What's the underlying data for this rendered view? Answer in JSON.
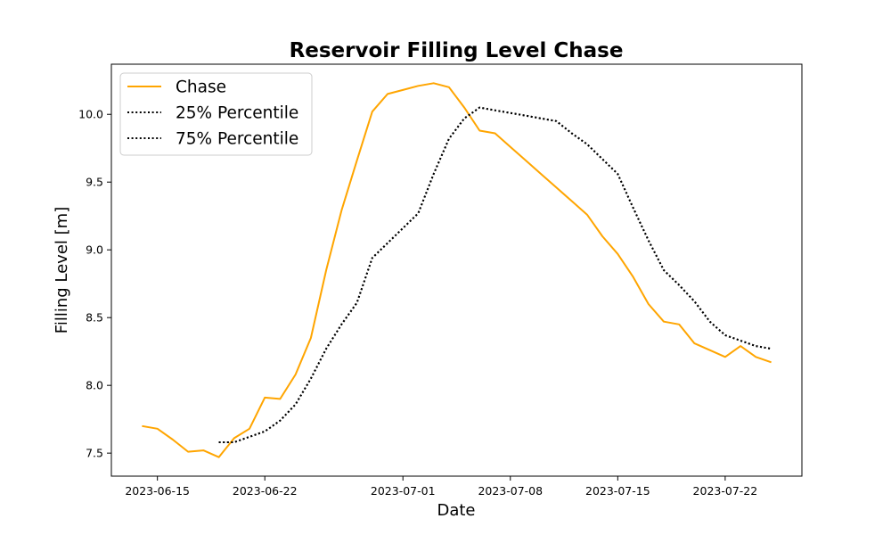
{
  "chart_data": {
    "type": "line",
    "title": "Reservoir Filling Level Chase",
    "xlabel": "Date",
    "ylabel": "Filling Level [m]",
    "x_axis_type": "date",
    "xlim": [
      "2023-06-12",
      "2023-07-27"
    ],
    "ylim": [
      7.33,
      10.37
    ],
    "x_ticks": [
      "2023-06-15",
      "2023-06-22",
      "2023-07-01",
      "2023-07-08",
      "2023-07-15",
      "2023-07-22"
    ],
    "y_ticks": [
      7.5,
      8.0,
      8.5,
      9.0,
      9.5,
      10.0
    ],
    "y_tick_labels": [
      "7.5",
      "8.0",
      "8.5",
      "9.0",
      "9.5",
      "10.0"
    ],
    "grid": false,
    "legend_position": "top-left",
    "series": [
      {
        "name": "Chase",
        "color": "#FFA500",
        "style": "solid",
        "x": [
          "2023-06-14",
          "2023-06-15",
          "2023-06-16",
          "2023-06-17",
          "2023-06-18",
          "2023-06-19",
          "2023-06-20",
          "2023-06-21",
          "2023-06-22",
          "2023-06-23",
          "2023-06-24",
          "2023-06-25",
          "2023-06-26",
          "2023-06-27",
          "2023-06-28",
          "2023-06-29",
          "2023-06-30",
          "2023-07-01",
          "2023-07-02",
          "2023-07-03",
          "2023-07-04",
          "2023-07-05",
          "2023-07-06",
          "2023-07-07",
          "2023-07-08",
          "2023-07-09",
          "2023-07-10",
          "2023-07-11",
          "2023-07-12",
          "2023-07-13",
          "2023-07-14",
          "2023-07-15",
          "2023-07-16",
          "2023-07-17",
          "2023-07-18",
          "2023-07-19",
          "2023-07-20",
          "2023-07-21",
          "2023-07-22",
          "2023-07-23",
          "2023-07-24",
          "2023-07-25"
        ],
        "y": [
          7.7,
          7.68,
          7.6,
          7.51,
          7.52,
          7.47,
          7.61,
          7.68,
          7.91,
          7.9,
          8.08,
          8.35,
          8.85,
          9.29,
          9.66,
          10.02,
          10.15,
          10.18,
          10.21,
          10.23,
          10.2,
          10.05,
          9.88,
          9.86,
          9.76,
          9.66,
          9.56,
          9.46,
          9.36,
          9.26,
          9.1,
          8.97,
          8.8,
          8.6,
          8.47,
          8.45,
          8.31,
          8.26,
          8.21,
          8.29,
          8.21,
          8.17
        ]
      },
      {
        "name": "25% Percentile",
        "color": "#000000",
        "style": "dotted",
        "x": [
          "2023-06-19",
          "2023-06-20",
          "2023-06-21",
          "2023-06-22",
          "2023-06-23",
          "2023-06-24",
          "2023-06-25",
          "2023-06-26",
          "2023-06-27",
          "2023-06-28",
          "2023-06-29",
          "2023-06-30",
          "2023-07-01",
          "2023-07-02",
          "2023-07-03",
          "2023-07-04",
          "2023-07-05",
          "2023-07-06",
          "2023-07-07",
          "2023-07-08",
          "2023-07-09",
          "2023-07-10",
          "2023-07-11",
          "2023-07-12",
          "2023-07-13",
          "2023-07-14",
          "2023-07-15",
          "2023-07-16",
          "2023-07-17",
          "2023-07-18",
          "2023-07-19",
          "2023-07-20",
          "2023-07-21",
          "2023-07-22",
          "2023-07-23",
          "2023-07-24",
          "2023-07-25"
        ],
        "y": [
          7.58,
          7.58,
          7.62,
          7.66,
          7.74,
          7.86,
          8.05,
          8.27,
          8.45,
          8.61,
          8.94,
          9.05,
          9.16,
          9.27,
          9.56,
          9.82,
          9.97,
          10.05,
          10.03,
          10.01,
          9.99,
          9.97,
          9.95,
          9.86,
          9.78,
          9.67,
          9.56,
          9.31,
          9.07,
          8.85,
          8.74,
          8.62,
          8.47,
          8.37,
          8.33,
          8.29,
          8.27
        ]
      },
      {
        "name": "75% Percentile",
        "color": "#000000",
        "style": "dotted",
        "x": [
          "2023-06-19",
          "2023-06-20",
          "2023-06-21",
          "2023-06-22",
          "2023-06-23",
          "2023-06-24",
          "2023-06-25",
          "2023-06-26",
          "2023-06-27",
          "2023-06-28",
          "2023-06-29",
          "2023-06-30",
          "2023-07-01",
          "2023-07-02",
          "2023-07-03",
          "2023-07-04",
          "2023-07-05",
          "2023-07-06",
          "2023-07-07",
          "2023-07-08",
          "2023-07-09",
          "2023-07-10",
          "2023-07-11",
          "2023-07-12",
          "2023-07-13",
          "2023-07-14",
          "2023-07-15",
          "2023-07-16",
          "2023-07-17",
          "2023-07-18",
          "2023-07-19",
          "2023-07-20",
          "2023-07-21",
          "2023-07-22",
          "2023-07-23",
          "2023-07-24",
          "2023-07-25"
        ],
        "y": [
          7.58,
          7.58,
          7.62,
          7.66,
          7.74,
          7.86,
          8.05,
          8.27,
          8.45,
          8.61,
          8.94,
          9.05,
          9.16,
          9.27,
          9.56,
          9.82,
          9.97,
          10.05,
          10.03,
          10.01,
          9.99,
          9.97,
          9.95,
          9.86,
          9.78,
          9.67,
          9.56,
          9.31,
          9.07,
          8.85,
          8.74,
          8.62,
          8.47,
          8.37,
          8.33,
          8.29,
          8.27
        ]
      }
    ]
  }
}
